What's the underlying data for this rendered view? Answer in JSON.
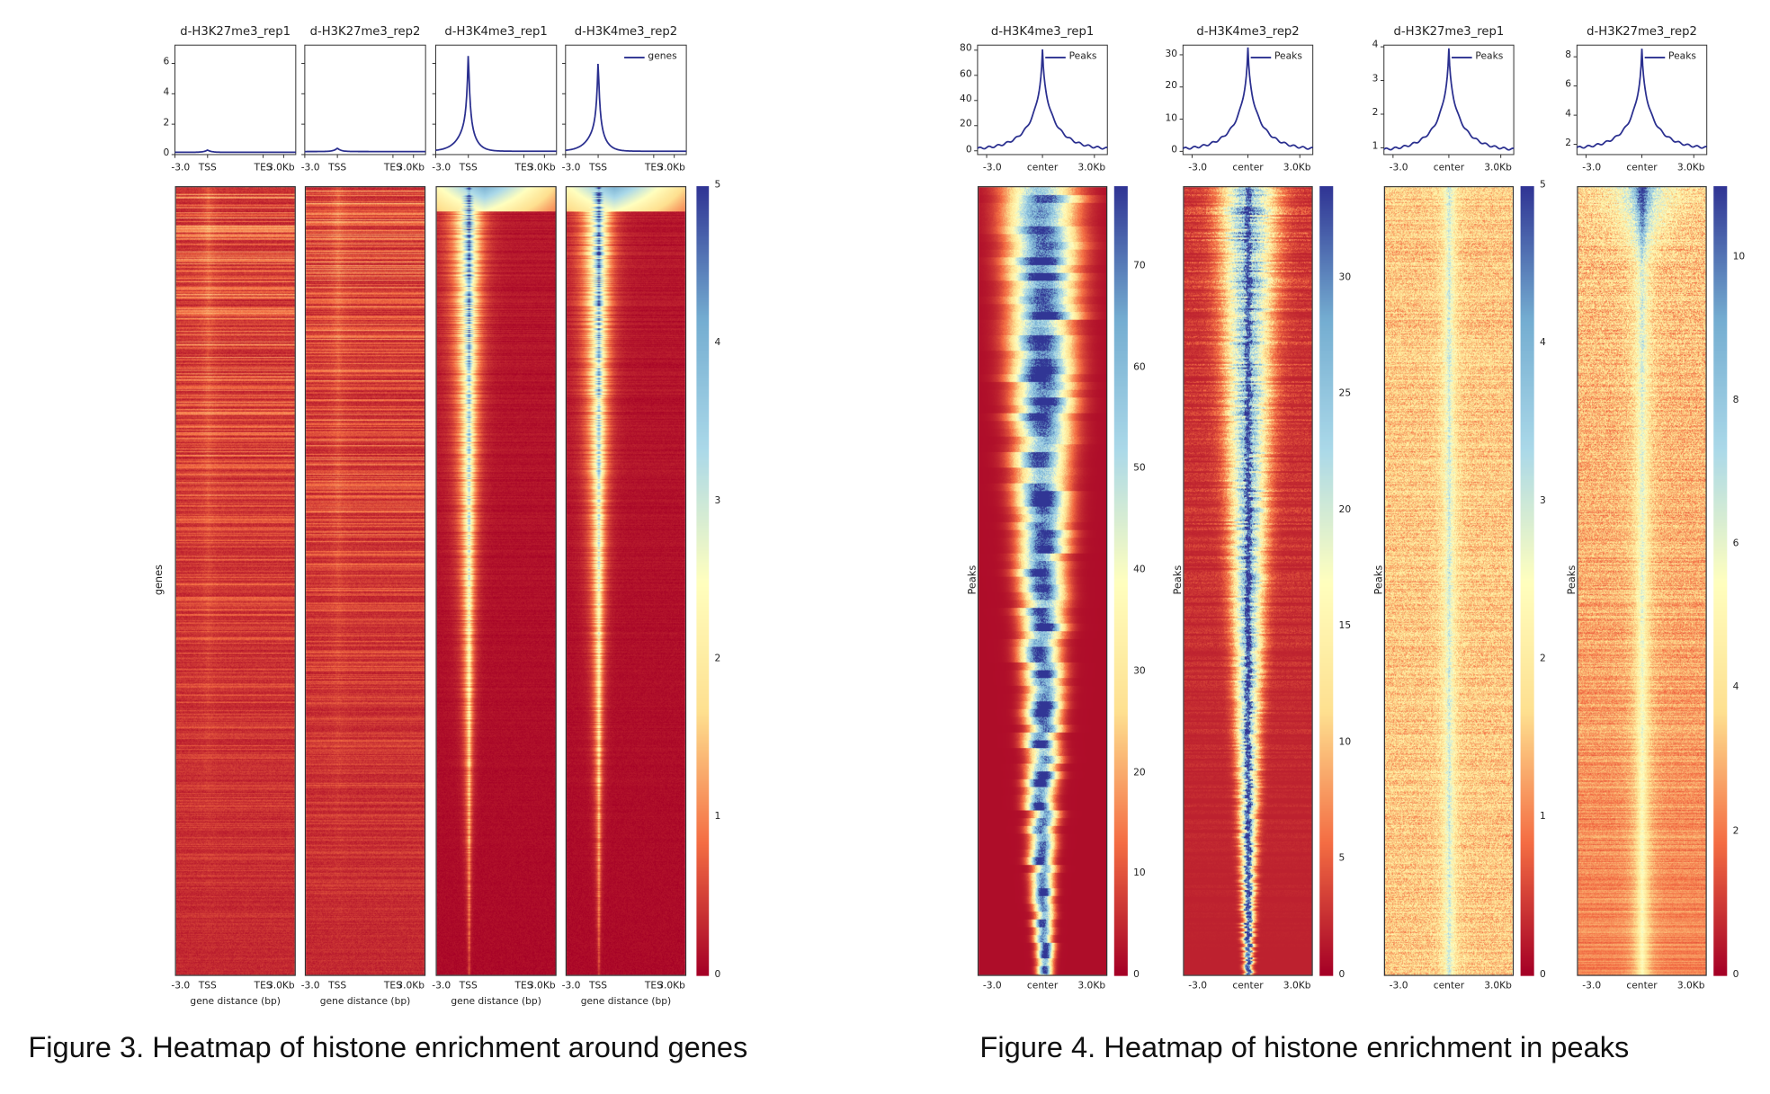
{
  "captions": {
    "fig3": "Figure 3. Heatmap of histone enrichment around genes",
    "fig4": "Figure 4. Heatmap of histone enrichment in peaks"
  },
  "colors": {
    "line": "#2a2f8f",
    "cmap": [
      "#a50026",
      "#f46d43",
      "#fee090",
      "#ffffbf",
      "#abd9e9",
      "#74add1",
      "#313695"
    ]
  },
  "chart_data": [
    {
      "type": "heatmap",
      "title": "Figure 3. Heatmap of histone enrichment around genes",
      "ylabel": "genes",
      "xlabel": "gene distance (bp)",
      "xticks": [
        "-3.0",
        "TSS",
        "TES",
        "3.0Kb"
      ],
      "profile_yticks": [
        "0",
        "2",
        "4",
        "6"
      ],
      "profile_ylim": [
        0,
        7.2
      ],
      "legend": "genes",
      "legend_position": "top-right",
      "colorbar": {
        "min": 0,
        "max": 5,
        "ticks": [
          "0",
          "1",
          "2",
          "3",
          "4",
          "5"
        ]
      },
      "panels": [
        {
          "title": "d-H3K27me3_rep1",
          "baseline": 0.15,
          "peak": 0.3,
          "kind": "k27gene"
        },
        {
          "title": "d-H3K27me3_rep2",
          "baseline": 0.2,
          "peak": 0.42,
          "kind": "k27gene"
        },
        {
          "title": "d-H3K4me3_rep1",
          "baseline": 0.22,
          "peak": 6.9,
          "kind": "k4gene"
        },
        {
          "title": "d-H3K4me3_rep2",
          "baseline": 0.22,
          "peak": 6.35,
          "kind": "k4gene"
        }
      ]
    },
    {
      "type": "heatmap",
      "title": "Figure 4. Heatmap of histone enrichment in peaks",
      "ylabel": "Peaks",
      "xticks": [
        "-3.0",
        "center",
        "3.0Kb"
      ],
      "legend": "Peaks",
      "legend_position": "top-right",
      "panels": [
        {
          "title": "d-H3K4me3_rep1",
          "baseline": 1,
          "peak": 80,
          "ylim": [
            -3,
            84
          ],
          "yticks": [
            "0",
            "20",
            "40",
            "60",
            "80"
          ],
          "ytickvals": [
            0,
            20,
            40,
            60,
            80
          ],
          "colorbar": {
            "min": 0,
            "max": 78,
            "ticks": [
              "0",
              "10",
              "20",
              "30",
              "40",
              "50",
              "60",
              "70"
            ],
            "tickvals": [
              0,
              10,
              20,
              30,
              40,
              50,
              60,
              70
            ]
          },
          "kind": "k4peak1"
        },
        {
          "title": "d-H3K4me3_rep2",
          "baseline": 0.5,
          "peak": 32,
          "ylim": [
            -1,
            33
          ],
          "yticks": [
            "0",
            "10",
            "20",
            "30"
          ],
          "ytickvals": [
            0,
            10,
            20,
            30
          ],
          "colorbar": {
            "min": 0,
            "max": 34,
            "ticks": [
              "0",
              "5",
              "10",
              "15",
              "20",
              "25",
              "30"
            ],
            "tickvals": [
              0,
              5,
              10,
              15,
              20,
              25,
              30
            ]
          },
          "kind": "k4peak2"
        },
        {
          "title": "d-H3K27me3_rep1",
          "baseline": 0.92,
          "peak": 3.93,
          "ylim": [
            0.8,
            4.05
          ],
          "yticks": [
            "1",
            "2",
            "3",
            "4"
          ],
          "ytickvals": [
            1,
            2,
            3,
            4
          ],
          "colorbar": {
            "min": 0,
            "max": 5,
            "ticks": [
              "0",
              "1",
              "2",
              "3",
              "4",
              "5"
            ],
            "tickvals": [
              0,
              1,
              2,
              3,
              4,
              5
            ]
          },
          "kind": "k27peak"
        },
        {
          "title": "d-H3K27me3_rep2",
          "baseline": 1.7,
          "peak": 8.5,
          "ylim": [
            1.3,
            8.8
          ],
          "yticks": [
            "2",
            "4",
            "6",
            "8"
          ],
          "ytickvals": [
            2,
            4,
            6,
            8
          ],
          "colorbar": {
            "min": 0,
            "max": 11,
            "ticks": [
              "0",
              "2",
              "4",
              "6",
              "8",
              "10"
            ],
            "tickvals": [
              0,
              2,
              4,
              6,
              8,
              10
            ]
          },
          "kind": "k27peak2"
        }
      ]
    }
  ]
}
